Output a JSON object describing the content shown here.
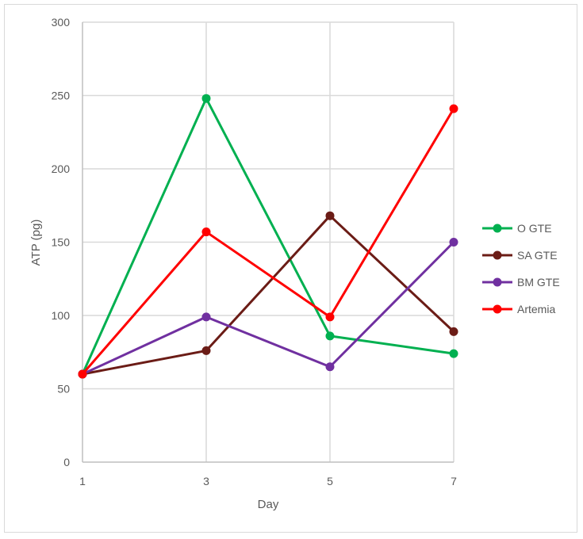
{
  "chart_data": {
    "type": "line",
    "title": "",
    "xlabel": "Day",
    "ylabel": "ATP (pg)",
    "x": [
      1,
      3,
      5,
      7
    ],
    "x_tick_labels": [
      "1",
      "3",
      "5",
      "7"
    ],
    "ylim": [
      0,
      300
    ],
    "y_ticks": [
      0,
      50,
      100,
      150,
      200,
      250,
      300
    ],
    "grid": true,
    "legend_position": "right",
    "series": [
      {
        "name": "O GTE",
        "color": "#00b050",
        "values": [
          60,
          248,
          86,
          74
        ]
      },
      {
        "name": "SA GTE",
        "color": "#6b1c16",
        "values": [
          60,
          76,
          168,
          89
        ]
      },
      {
        "name": "BM GTE",
        "color": "#7030a0",
        "values": [
          60,
          99,
          65,
          150
        ]
      },
      {
        "name": "Artemia",
        "color": "#ff0000",
        "values": [
          60,
          157,
          99,
          241
        ]
      }
    ]
  }
}
